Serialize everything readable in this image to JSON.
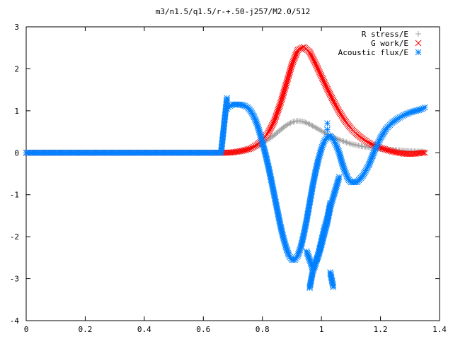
{
  "chart_data": {
    "type": "scatter",
    "title": "m3/n1.5/q1.5/r-+.50-j257/M2.0/512",
    "xlabel": "",
    "ylabel": "",
    "xlim": [
      0,
      1.4
    ],
    "ylim": [
      -4,
      3
    ],
    "x_ticks": [
      "0",
      "0.2",
      "0.4",
      "0.6",
      "0.8",
      "1",
      "1.2",
      "1.4"
    ],
    "y_ticks": [
      "-4",
      "-3",
      "-2",
      "-1",
      "0",
      "1",
      "2",
      "3"
    ],
    "grid": false,
    "legend_position": "top-right",
    "series": [
      {
        "name": "R stress/E",
        "marker": "plus",
        "color": "#a0a0a0",
        "x": [
          0.0,
          0.1,
          0.2,
          0.3,
          0.4,
          0.5,
          0.6,
          0.68,
          0.7,
          0.72,
          0.74,
          0.76,
          0.78,
          0.8,
          0.82,
          0.84,
          0.86,
          0.88,
          0.9,
          0.92,
          0.94,
          0.96,
          0.98,
          1.0,
          1.02,
          1.04,
          1.06,
          1.08,
          1.1,
          1.12,
          1.14,
          1.16,
          1.18,
          1.2,
          1.22,
          1.24,
          1.26,
          1.28,
          1.3,
          1.32,
          1.34,
          1.35
        ],
        "y": [
          0,
          0,
          0,
          0,
          0,
          0,
          0,
          0,
          0.01,
          0.03,
          0.06,
          0.1,
          0.16,
          0.23,
          0.32,
          0.42,
          0.54,
          0.65,
          0.73,
          0.76,
          0.74,
          0.68,
          0.6,
          0.52,
          0.44,
          0.37,
          0.31,
          0.26,
          0.21,
          0.18,
          0.15,
          0.13,
          0.11,
          0.09,
          0.08,
          0.07,
          0.06,
          0.05,
          0.04,
          0.03,
          0.03,
          0.02
        ]
      },
      {
        "name": "G work/E",
        "marker": "cross",
        "color": "#ff0000",
        "x": [
          0.0,
          0.1,
          0.2,
          0.3,
          0.4,
          0.5,
          0.6,
          0.68,
          0.7,
          0.72,
          0.74,
          0.76,
          0.78,
          0.8,
          0.82,
          0.84,
          0.86,
          0.88,
          0.9,
          0.92,
          0.94,
          0.96,
          0.98,
          1.0,
          1.02,
          1.04,
          1.06,
          1.08,
          1.1,
          1.12,
          1.14,
          1.16,
          1.18,
          1.2,
          1.22,
          1.24,
          1.26,
          1.28,
          1.3,
          1.32,
          1.34,
          1.35
        ],
        "y": [
          0,
          0,
          0,
          0,
          0,
          0,
          0,
          0,
          0.01,
          0.03,
          0.06,
          0.1,
          0.18,
          0.3,
          0.48,
          0.75,
          1.15,
          1.62,
          2.1,
          2.45,
          2.52,
          2.4,
          2.12,
          1.82,
          1.52,
          1.24,
          0.98,
          0.76,
          0.58,
          0.44,
          0.33,
          0.24,
          0.17,
          0.12,
          0.07,
          0.03,
          0.0,
          -0.02,
          -0.03,
          -0.02,
          0.0,
          0.0
        ]
      },
      {
        "name": "Acoustic flux/E",
        "marker": "star",
        "color": "#0080ff",
        "x": [
          0.0,
          0.1,
          0.2,
          0.3,
          0.4,
          0.5,
          0.6,
          0.66,
          0.68,
          0.68,
          0.69,
          0.7,
          0.71,
          0.72,
          0.73,
          0.74,
          0.75,
          0.76,
          0.77,
          0.78,
          0.79,
          0.8,
          0.81,
          0.82,
          0.83,
          0.84,
          0.85,
          0.86,
          0.87,
          0.88,
          0.89,
          0.9,
          0.91,
          0.92,
          0.93,
          0.94,
          0.95,
          0.96,
          0.97,
          0.98,
          0.99,
          1.0,
          1.01,
          1.02,
          1.03,
          1.04,
          1.05,
          1.06,
          1.07,
          1.08,
          1.09,
          1.1,
          1.12,
          1.14,
          1.16,
          1.18,
          1.2,
          1.22,
          1.24,
          1.26,
          1.28,
          1.3,
          1.32,
          1.34,
          1.35,
          0.96,
          0.97,
          0.98,
          0.99,
          1.0,
          1.01,
          1.02,
          1.03,
          0.95,
          0.96,
          0.97,
          0.98,
          0.99,
          1.0,
          1.01,
          1.02,
          1.03,
          1.04,
          1.05,
          1.06,
          1.03,
          1.04,
          1.02,
          1.02
        ],
        "y": [
          0,
          0,
          0,
          0,
          0,
          0,
          0,
          0,
          1.3,
          1.05,
          1.12,
          1.15,
          1.15,
          1.15,
          1.14,
          1.12,
          1.08,
          1.0,
          0.88,
          0.72,
          0.5,
          0.25,
          -0.02,
          -0.32,
          -0.65,
          -1.0,
          -1.35,
          -1.7,
          -2.0,
          -2.25,
          -2.45,
          -2.55,
          -2.55,
          -2.45,
          -2.25,
          -1.95,
          -1.6,
          -1.2,
          -0.8,
          -0.45,
          -0.15,
          0.1,
          0.28,
          0.38,
          0.4,
          0.32,
          0.18,
          0.0,
          -0.25,
          -0.45,
          -0.62,
          -0.7,
          -0.7,
          -0.55,
          -0.3,
          0.05,
          0.35,
          0.58,
          0.72,
          0.82,
          0.9,
          0.96,
          1.0,
          1.04,
          1.08,
          -3.22,
          -2.85,
          -2.65,
          -2.4,
          -2.1,
          -1.8,
          -1.55,
          -1.2,
          -2.35,
          -2.55,
          -2.75,
          -2.6,
          -2.45,
          -2.2,
          -1.92,
          -1.65,
          -1.3,
          -1.05,
          -0.82,
          -0.58,
          -2.85,
          -3.2,
          0.55,
          0.7
        ]
      }
    ]
  }
}
